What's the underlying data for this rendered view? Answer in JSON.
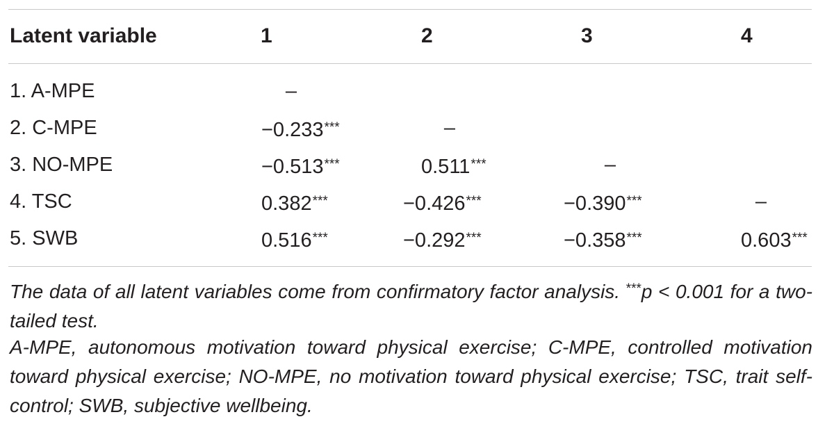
{
  "header": {
    "label": "Latent variable",
    "cols": [
      "1",
      "2",
      "3",
      "4"
    ]
  },
  "rows": [
    {
      "label": "1. A-MPE",
      "c1": "–",
      "c2": "",
      "c3": "",
      "c4": ""
    },
    {
      "label": "2. C-MPE",
      "c1": "−0.233",
      "c2": "–",
      "c3": "",
      "c4": ""
    },
    {
      "label": "3. NO-MPE",
      "c1": "−0.513",
      "c2": "0.511",
      "c3": "–",
      "c4": ""
    },
    {
      "label": "4. TSC",
      "c1": "0.382",
      "c2": "−0.426",
      "c3": "−0.390",
      "c4": "–"
    },
    {
      "label": "5. SWB",
      "c1": "0.516",
      "c2": "−0.292",
      "c3": "−0.358",
      "c4": "0.603"
    }
  ],
  "significance_marker": "***",
  "notes": {
    "note1_pre": "The data of all latent variables come from confirmatory factor analysis. ",
    "note1_sup": "***",
    "note1_post": "p < 0.001 for a two-tailed test.",
    "note2": "A-MPE, autonomous motivation toward physical exercise; C-MPE, controlled motivation toward physical exercise; NO-MPE, no motivation toward physical exercise; TSC, trait self-control; SWB, subjective wellbeing."
  }
}
